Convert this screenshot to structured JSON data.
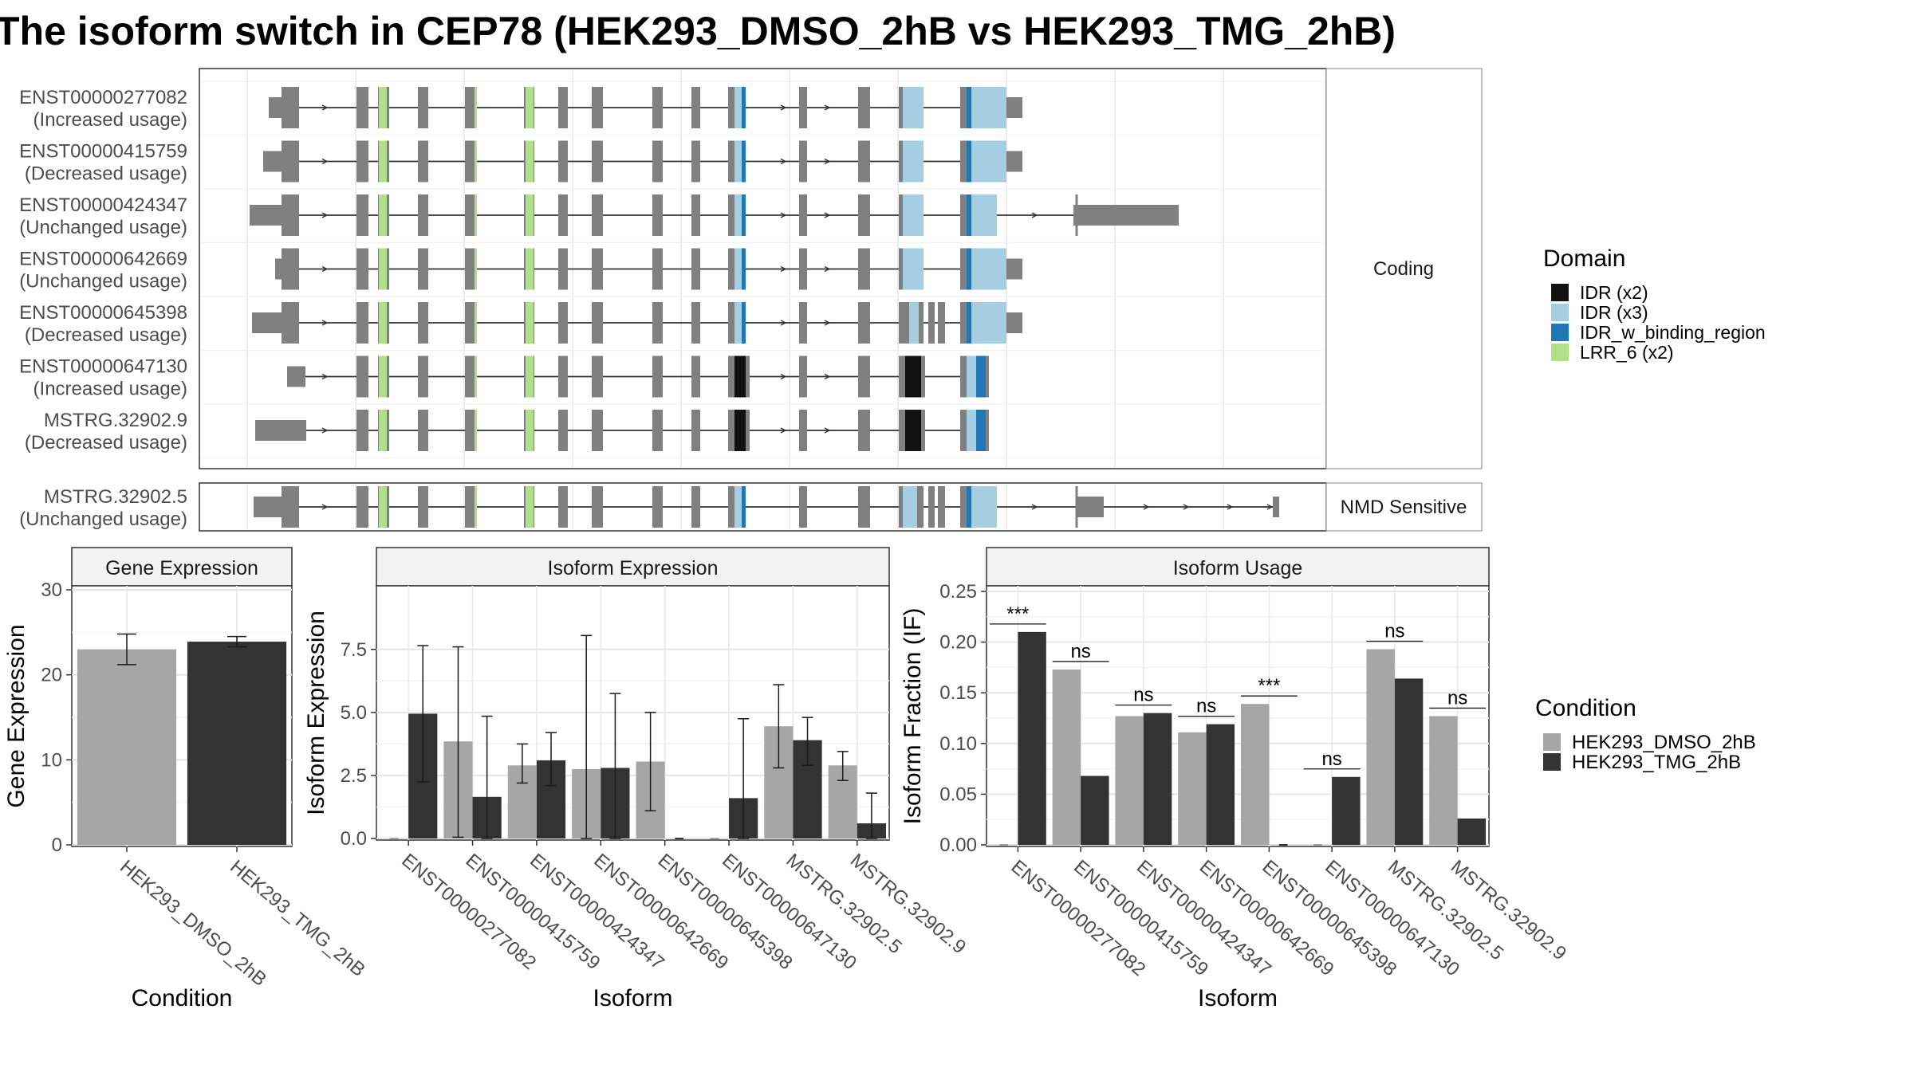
{
  "title": "The isoform switch in CEP78 (HEK293_DMSO_2hB vs HEK293_TMG_2hB)",
  "colors": {
    "exon": "#808080",
    "intron": "#333333",
    "domains": {
      "IDR (x2)": "#111111",
      "IDR (x3)": "#a6cee3",
      "IDR_w_binding_region": "#1f78b4",
      "LRR_6 (x2)": "#b2df8a"
    },
    "conditions": {
      "HEK293_DMSO_2hB": "#a6a6a6",
      "HEK293_TMG_2hB": "#333333"
    }
  },
  "structure": {
    "coding_panel_label": "Coding",
    "nmd_panel_label": "NMD Sensitive",
    "coding": [
      {
        "id": "ENST00000277082",
        "usage": "(Increased usage)"
      },
      {
        "id": "ENST00000415759",
        "usage": "(Decreased usage)"
      },
      {
        "id": "ENST00000424347",
        "usage": "(Unchanged usage)"
      },
      {
        "id": "ENST00000642669",
        "usage": "(Unchanged usage)"
      },
      {
        "id": "ENST00000645398",
        "usage": "(Decreased usage)"
      },
      {
        "id": "ENST00000647130",
        "usage": "(Increased usage)"
      },
      {
        "id": "MSTRG.32902.9",
        "usage": "(Decreased usage)"
      }
    ],
    "nmd": [
      {
        "id": "MSTRG.32902.5",
        "usage": "(Unchanged usage)"
      }
    ]
  },
  "legends": {
    "domain_title": "Domain",
    "domain_items": [
      "IDR (x2)",
      "IDR (x3)",
      "IDR_w_binding_region",
      "LRR_6 (x2)"
    ],
    "condition_title": "Condition",
    "condition_items": [
      "HEK293_DMSO_2hB",
      "HEK293_TMG_2hB"
    ]
  },
  "chart_data": [
    {
      "type": "bar",
      "title": "Gene Expression",
      "xlabel": "Condition",
      "ylabel": "Gene Expression",
      "ylim": [
        0,
        30
      ],
      "yticks": [
        0,
        10,
        20,
        30
      ],
      "categories": [
        "HEK293_DMSO_2hB",
        "HEK293_TMG_2hB"
      ],
      "values": [
        23.0,
        23.9
      ],
      "error_low": [
        21.2,
        23.3
      ],
      "error_high": [
        24.8,
        24.5
      ]
    },
    {
      "type": "bar",
      "title": "Isoform Expression",
      "xlabel": "Isoform",
      "ylabel": "Isoform Expression",
      "ylim": [
        0,
        9.8
      ],
      "yticks": [
        0.0,
        2.5,
        5.0,
        7.5
      ],
      "ytick_labels": [
        "0.0",
        "2.5",
        "5.0",
        "7.5"
      ],
      "categories": [
        "ENST00000277082",
        "ENST00000415759",
        "ENST00000424347",
        "ENST00000642669",
        "ENST00000645398",
        "ENST00000647130",
        "MSTRG.32902.5",
        "MSTRG.32902.9"
      ],
      "series": [
        {
          "name": "HEK293_DMSO_2hB",
          "values": [
            0.0,
            3.85,
            2.9,
            2.75,
            3.05,
            0.0,
            4.45,
            2.9
          ],
          "error_low": [
            0.0,
            0.05,
            2.2,
            0.0,
            1.1,
            0.0,
            2.8,
            2.3
          ],
          "error_high": [
            0.0,
            7.6,
            3.75,
            8.05,
            5.0,
            0.0,
            6.1,
            3.45
          ]
        },
        {
          "name": "HEK293_TMG_2hB",
          "values": [
            4.95,
            1.65,
            3.1,
            2.8,
            0.0,
            1.6,
            3.9,
            0.6
          ],
          "error_low": [
            2.25,
            0.0,
            2.1,
            0.0,
            0.0,
            0.0,
            2.9,
            0.0
          ],
          "error_high": [
            7.65,
            4.85,
            4.2,
            5.75,
            0.0,
            4.75,
            4.8,
            1.8
          ]
        }
      ]
    },
    {
      "type": "bar",
      "title": "Isoform Usage",
      "xlabel": "Isoform",
      "ylabel": "Isoform Fraction (IF)",
      "ylim": [
        0,
        0.25
      ],
      "yticks": [
        0.0,
        0.05,
        0.1,
        0.15,
        0.2,
        0.25
      ],
      "ytick_labels": [
        "0.00",
        "0.05",
        "0.10",
        "0.15",
        "0.20",
        "0.25"
      ],
      "categories": [
        "ENST00000277082",
        "ENST00000415759",
        "ENST00000424347",
        "ENST00000642669",
        "ENST00000645398",
        "ENST00000647130",
        "MSTRG.32902.5",
        "MSTRG.32902.9"
      ],
      "series": [
        {
          "name": "HEK293_DMSO_2hB",
          "values": [
            0.0,
            0.173,
            0.127,
            0.111,
            0.139,
            0.0,
            0.193,
            0.127
          ]
        },
        {
          "name": "HEK293_TMG_2hB",
          "values": [
            0.21,
            0.068,
            0.13,
            0.119,
            0.0,
            0.067,
            0.164,
            0.026
          ]
        }
      ],
      "significance": [
        "***",
        "ns",
        "ns",
        "ns",
        "***",
        "ns",
        "ns",
        "ns"
      ]
    }
  ]
}
